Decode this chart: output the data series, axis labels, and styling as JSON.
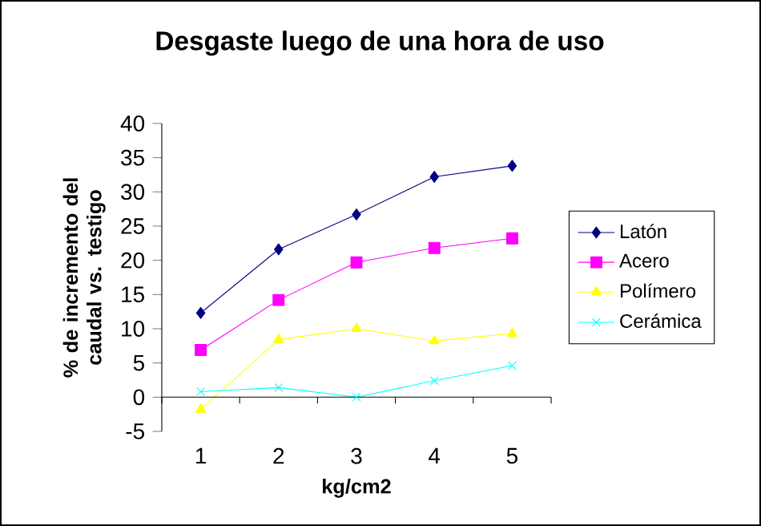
{
  "chart_data": {
    "type": "line",
    "title": "Desgaste luego de una hora de uso",
    "xlabel": "kg/cm2",
    "ylabel": "% de incremento del caudal vs. testigo",
    "categories": [
      "1",
      "2",
      "3",
      "4",
      "5"
    ],
    "series": [
      {
        "name": "Latón",
        "color": "#000080",
        "marker": "diamond",
        "values": [
          12.3,
          21.6,
          26.7,
          32.2,
          33.8
        ]
      },
      {
        "name": "Acero",
        "color": "#ff00ff",
        "marker": "square",
        "values": [
          6.9,
          14.2,
          19.7,
          21.8,
          23.2
        ]
      },
      {
        "name": "Polímero",
        "color": "#ffff00",
        "marker": "triangle",
        "values": [
          -1.8,
          8.4,
          10.0,
          8.2,
          9.3
        ]
      },
      {
        "name": "Cerámica",
        "color": "#00ffff",
        "marker": "cross",
        "values": [
          0.8,
          1.4,
          0.0,
          2.4,
          4.6
        ]
      }
    ],
    "ylim": [
      -5,
      40
    ],
    "yticks": [
      -5,
      0,
      5,
      10,
      15,
      20,
      25,
      30,
      35,
      40
    ],
    "legend": "right",
    "line_style": "solid"
  }
}
